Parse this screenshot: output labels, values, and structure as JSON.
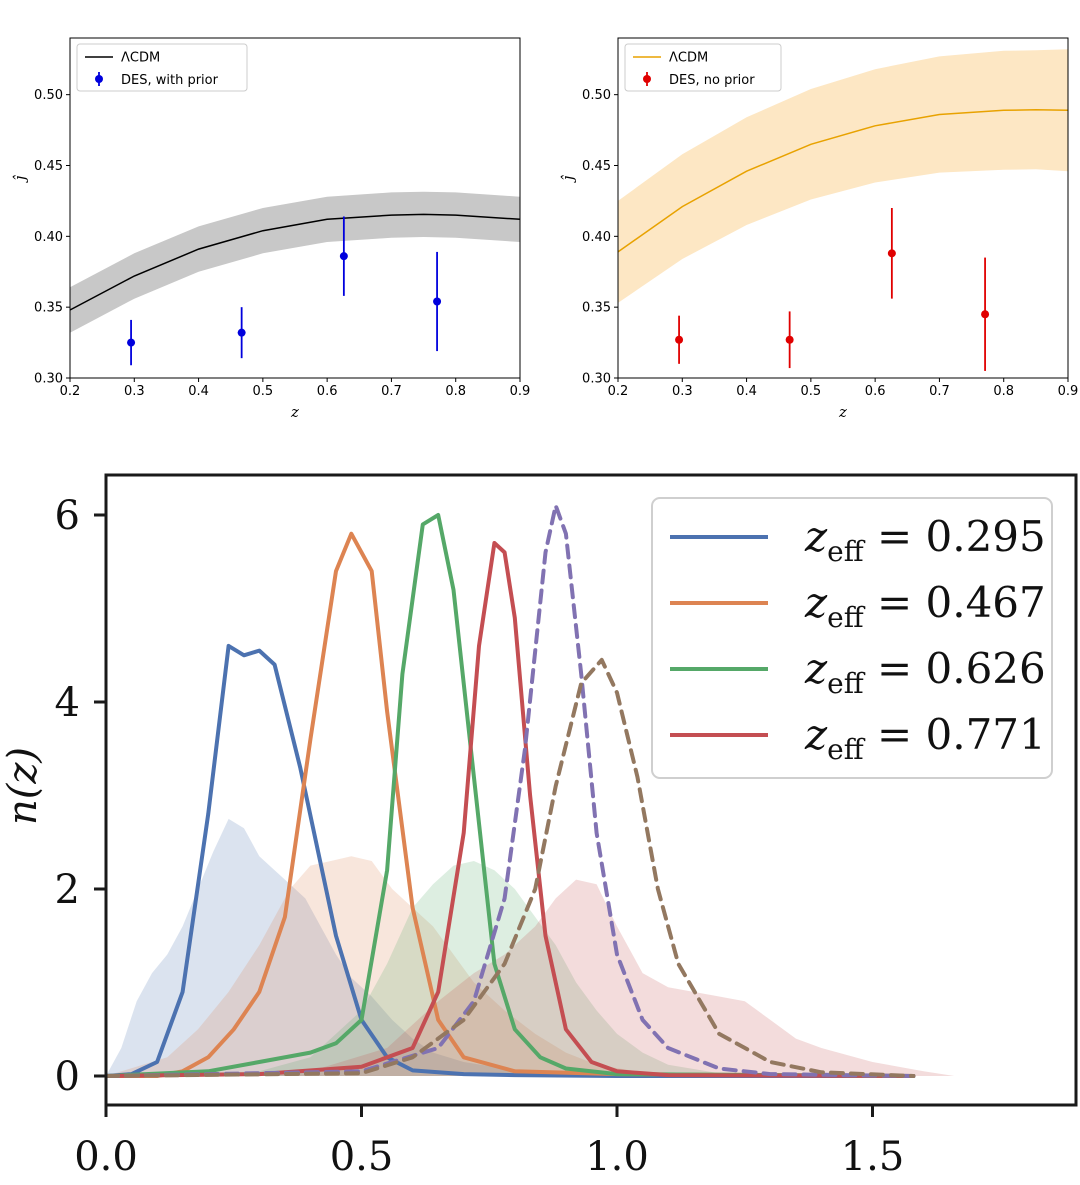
{
  "chart_data": [
    {
      "type": "scatter",
      "panel": "top-left",
      "xlabel": "z",
      "ylabel": "ĵ",
      "xlim": [
        0.2,
        0.9
      ],
      "ylim": [
        0.3,
        0.54
      ],
      "xticks": [
        "0.2",
        "0.3",
        "0.4",
        "0.5",
        "0.6",
        "0.7",
        "0.8",
        "0.9"
      ],
      "yticks": [
        "0.30",
        "0.35",
        "0.40",
        "0.45",
        "0.50"
      ],
      "legend_position": "top-left",
      "colors": {
        "model": "#000000",
        "band": "#c8c8c8",
        "points": "#0000dd"
      },
      "model": {
        "name": "ΛCDM",
        "x": [
          0.2,
          0.3,
          0.4,
          0.5,
          0.6,
          0.7,
          0.75,
          0.8,
          0.9
        ],
        "y": [
          0.348,
          0.372,
          0.391,
          0.404,
          0.412,
          0.415,
          0.4155,
          0.415,
          0.412
        ],
        "band_halfwidth": 0.016
      },
      "series": [
        {
          "name": "DES, with prior",
          "x": [
            0.295,
            0.467,
            0.626,
            0.771
          ],
          "y": [
            0.325,
            0.332,
            0.386,
            0.354
          ],
          "err": [
            0.016,
            0.018,
            0.028,
            0.035
          ]
        }
      ]
    },
    {
      "type": "scatter",
      "panel": "top-right",
      "xlabel": "z",
      "ylabel": "ĵ",
      "xlim": [
        0.2,
        0.9
      ],
      "ylim": [
        0.3,
        0.54
      ],
      "xticks": [
        "0.2",
        "0.3",
        "0.4",
        "0.5",
        "0.6",
        "0.7",
        "0.8",
        "0.9"
      ],
      "yticks": [
        "0.30",
        "0.35",
        "0.40",
        "0.45",
        "0.50"
      ],
      "legend_position": "top-left",
      "colors": {
        "model": "#e8a200",
        "band": "#fde7c4",
        "points": "#e00000"
      },
      "model": {
        "name": "ΛCDM",
        "x": [
          0.2,
          0.3,
          0.4,
          0.5,
          0.6,
          0.7,
          0.8,
          0.85,
          0.9
        ],
        "y": [
          0.389,
          0.421,
          0.446,
          0.465,
          0.478,
          0.486,
          0.489,
          0.4893,
          0.489
        ],
        "band_halfwidth": [
          0.036,
          0.037,
          0.038,
          0.039,
          0.04,
          0.041,
          0.042,
          0.042,
          0.043
        ]
      },
      "series": [
        {
          "name": "DES, no prior",
          "x": [
            0.295,
            0.467,
            0.626,
            0.771
          ],
          "y": [
            0.327,
            0.327,
            0.388,
            0.345
          ],
          "err": [
            0.017,
            0.02,
            0.032,
            0.04
          ]
        }
      ]
    },
    {
      "type": "line",
      "panel": "bottom",
      "ylabel": "n(z)",
      "xlim": [
        0.0,
        1.9
      ],
      "ylim": [
        -0.3,
        6.5
      ],
      "xticks": [
        "0.0",
        "0.5",
        "1.0",
        "1.5"
      ],
      "yticks": [
        "0",
        "2",
        "4",
        "6"
      ],
      "legend_position": "top-right",
      "legend_prefix": "z",
      "legend_subscript": "eff",
      "legend_eq": " = ",
      "series": [
        {
          "name": "0.295",
          "style": "solid",
          "color": "#4c72b0",
          "x": [
            0.0,
            0.05,
            0.1,
            0.15,
            0.2,
            0.24,
            0.27,
            0.3,
            0.33,
            0.38,
            0.45,
            0.5,
            0.55,
            0.6,
            0.7,
            0.8,
            1.0,
            1.58
          ],
          "y": [
            0,
            0.02,
            0.15,
            0.9,
            2.8,
            4.6,
            4.5,
            4.55,
            4.4,
            3.3,
            1.5,
            0.6,
            0.2,
            0.06,
            0.02,
            0.01,
            0,
            0
          ]
        },
        {
          "name": "0.467",
          "style": "solid",
          "color": "#dd8452",
          "x": [
            0.0,
            0.1,
            0.15,
            0.2,
            0.25,
            0.3,
            0.35,
            0.4,
            0.45,
            0.48,
            0.52,
            0.55,
            0.6,
            0.65,
            0.7,
            0.8,
            1.0,
            1.58
          ],
          "y": [
            0,
            0,
            0.05,
            0.2,
            0.5,
            0.9,
            1.7,
            3.6,
            5.4,
            5.8,
            5.4,
            3.9,
            1.8,
            0.6,
            0.2,
            0.05,
            0.02,
            0
          ]
        },
        {
          "name": "0.626",
          "style": "solid",
          "color": "#55a868",
          "x": [
            0.0,
            0.2,
            0.3,
            0.4,
            0.45,
            0.5,
            0.55,
            0.58,
            0.62,
            0.65,
            0.68,
            0.72,
            0.76,
            0.8,
            0.85,
            0.9,
            1.0,
            1.58
          ],
          "y": [
            0,
            0.05,
            0.15,
            0.25,
            0.35,
            0.6,
            2.2,
            4.3,
            5.9,
            6.0,
            5.2,
            3.2,
            1.2,
            0.5,
            0.2,
            0.08,
            0.02,
            0
          ]
        },
        {
          "name": "0.771",
          "style": "solid",
          "color": "#c44e52",
          "x": [
            0.0,
            0.3,
            0.5,
            0.6,
            0.65,
            0.7,
            0.73,
            0.76,
            0.78,
            0.8,
            0.83,
            0.86,
            0.9,
            0.95,
            1.0,
            1.1,
            1.58
          ],
          "y": [
            0,
            0.02,
            0.1,
            0.3,
            0.9,
            2.6,
            4.6,
            5.7,
            5.6,
            4.9,
            3.0,
            1.5,
            0.5,
            0.15,
            0.05,
            0.01,
            0
          ]
        },
        {
          "name": "",
          "style": "dashed",
          "color": "#8172b2",
          "x": [
            0.0,
            0.5,
            0.65,
            0.72,
            0.78,
            0.82,
            0.86,
            0.88,
            0.9,
            0.93,
            0.96,
            1.0,
            1.05,
            1.1,
            1.2,
            1.3,
            1.58
          ],
          "y": [
            0,
            0.05,
            0.3,
            0.8,
            1.9,
            3.5,
            5.6,
            6.1,
            5.8,
            4.3,
            2.6,
            1.3,
            0.6,
            0.3,
            0.08,
            0.02,
            0
          ]
        },
        {
          "name": "",
          "style": "dashed",
          "color": "#937860",
          "x": [
            0.0,
            0.5,
            0.6,
            0.7,
            0.78,
            0.84,
            0.88,
            0.93,
            0.97,
            1.0,
            1.04,
            1.08,
            1.12,
            1.2,
            1.3,
            1.4,
            1.58
          ],
          "y": [
            0,
            0.03,
            0.2,
            0.6,
            1.2,
            2.0,
            3.1,
            4.2,
            4.45,
            4.1,
            3.2,
            2.0,
            1.2,
            0.45,
            0.15,
            0.04,
            0
          ]
        }
      ],
      "histograms": [
        {
          "color": "#4c72b0",
          "x": [
            0.0,
            0.03,
            0.06,
            0.09,
            0.12,
            0.15,
            0.18,
            0.21,
            0.24,
            0.27,
            0.3,
            0.33,
            0.36,
            0.39,
            0.42,
            0.45,
            0.48,
            0.52,
            0.56,
            0.6,
            0.64,
            0.7,
            0.78,
            0.9,
            1.0
          ],
          "y": [
            0,
            0.3,
            0.8,
            1.1,
            1.3,
            1.6,
            2.0,
            2.4,
            2.75,
            2.65,
            2.35,
            2.2,
            2.05,
            1.9,
            1.6,
            1.3,
            1.05,
            0.85,
            0.6,
            0.4,
            0.25,
            0.15,
            0.08,
            0.02,
            0
          ]
        },
        {
          "color": "#dd8452",
          "x": [
            0.0,
            0.12,
            0.18,
            0.24,
            0.3,
            0.36,
            0.4,
            0.44,
            0.48,
            0.52,
            0.56,
            0.6,
            0.64,
            0.68,
            0.72,
            0.78,
            0.84,
            0.9,
            0.96,
            1.05,
            1.15
          ],
          "y": [
            0,
            0.2,
            0.5,
            0.9,
            1.4,
            2.0,
            2.25,
            2.3,
            2.35,
            2.3,
            2.0,
            1.8,
            1.6,
            1.3,
            1.0,
            0.7,
            0.45,
            0.25,
            0.12,
            0.04,
            0
          ]
        },
        {
          "color": "#55a868",
          "x": [
            0.0,
            0.3,
            0.4,
            0.5,
            0.55,
            0.6,
            0.64,
            0.68,
            0.72,
            0.76,
            0.8,
            0.84,
            0.88,
            0.92,
            0.96,
            1.0,
            1.05,
            1.1,
            1.2,
            1.3
          ],
          "y": [
            0,
            0.05,
            0.2,
            0.7,
            1.2,
            1.8,
            2.05,
            2.25,
            2.3,
            2.2,
            2.0,
            1.7,
            1.4,
            1.0,
            0.7,
            0.45,
            0.25,
            0.12,
            0.03,
            0
          ]
        },
        {
          "color": "#c44e52",
          "x": [
            0.0,
            0.4,
            0.55,
            0.65,
            0.72,
            0.78,
            0.84,
            0.88,
            0.92,
            0.96,
            1.0,
            1.05,
            1.1,
            1.15,
            1.2,
            1.25,
            1.3,
            1.35,
            1.4,
            1.5,
            1.6,
            1.66
          ],
          "y": [
            0,
            0.05,
            0.3,
            0.8,
            1.1,
            1.3,
            1.6,
            1.9,
            2.1,
            2.05,
            1.6,
            1.1,
            0.95,
            0.9,
            0.85,
            0.8,
            0.6,
            0.4,
            0.3,
            0.15,
            0.05,
            0
          ]
        }
      ]
    }
  ]
}
